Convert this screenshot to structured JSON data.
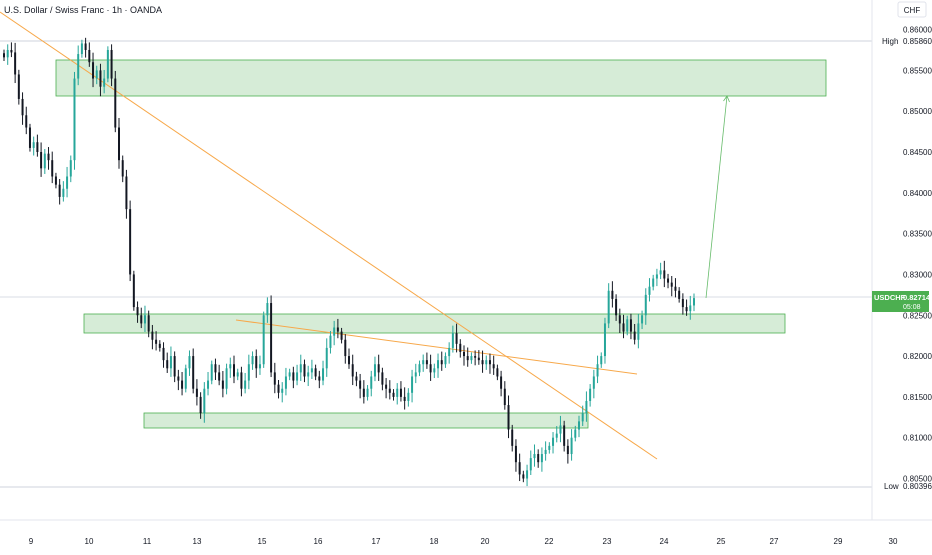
{
  "header": {
    "title": "U.S. Dollar / Swiss Franc · 1h · OANDA"
  },
  "price_axis": {
    "currency": "CHF",
    "labels": [
      "0.86000",
      "0.85500",
      "0.85000",
      "0.84500",
      "0.84000",
      "0.83500",
      "0.83000",
      "0.82500",
      "0.82000",
      "0.81500",
      "0.81000",
      "0.80500"
    ],
    "high_label": "High",
    "high_value": "0.85860",
    "low_label": "Low",
    "low_value": "0.80396",
    "current_symbol": "USDCHF",
    "current_price": "0.82714",
    "countdown": "05:08"
  },
  "time_axis": {
    "labels": [
      "9",
      "10",
      "11",
      "13",
      "15",
      "16",
      "17",
      "18",
      "20",
      "22",
      "23",
      "24",
      "25",
      "27",
      "29",
      "30"
    ]
  },
  "colors": {
    "up": "#26a69a",
    "down": "#131722",
    "zone_fill": "#c8e6c9",
    "zone_stroke": "#4caf50",
    "trendline": "#f7a84a",
    "projection": "#66bb6a",
    "current_badge": "#4caf50"
  },
  "chart_data": {
    "type": "candlestick",
    "symbol": "USDCHF",
    "interval": "1h",
    "source": "OANDA",
    "ylim": [
      0.802,
      0.8625
    ],
    "close_series": [
      0.8566,
      0.8575,
      0.8572,
      0.8545,
      0.8515,
      0.8495,
      0.848,
      0.8455,
      0.8462,
      0.845,
      0.843,
      0.8448,
      0.844,
      0.842,
      0.841,
      0.8395,
      0.8405,
      0.842,
      0.844,
      0.854,
      0.857,
      0.8583,
      0.8575,
      0.856,
      0.854,
      0.855,
      0.853,
      0.854,
      0.8575,
      0.854,
      0.848,
      0.844,
      0.842,
      0.838,
      0.83,
      0.826,
      0.825,
      0.824,
      0.825,
      0.823,
      0.822,
      0.8215,
      0.821,
      0.8195,
      0.8185,
      0.82,
      0.8175,
      0.817,
      0.816,
      0.8185,
      0.82,
      0.816,
      0.815,
      0.813,
      0.816,
      0.817,
      0.819,
      0.818,
      0.817,
      0.816,
      0.8185,
      0.819,
      0.8175,
      0.818,
      0.816,
      0.817,
      0.819,
      0.82,
      0.8185,
      0.819,
      0.825,
      0.8265,
      0.818,
      0.8165,
      0.8155,
      0.816,
      0.8175,
      0.818,
      0.817,
      0.818,
      0.819,
      0.8175,
      0.818,
      0.8185,
      0.8175,
      0.817,
      0.8185,
      0.821,
      0.8225,
      0.8235,
      0.823,
      0.822,
      0.82,
      0.819,
      0.8175,
      0.817,
      0.816,
      0.815,
      0.816,
      0.8175,
      0.819,
      0.818,
      0.8165,
      0.816,
      0.8155,
      0.815,
      0.816,
      0.815,
      0.8145,
      0.8155,
      0.8175,
      0.818,
      0.819,
      0.8195,
      0.819,
      0.818,
      0.8185,
      0.8195,
      0.819,
      0.82,
      0.821,
      0.8228,
      0.8215,
      0.8205,
      0.82,
      0.8195,
      0.82,
      0.8198,
      0.8195,
      0.819,
      0.8195,
      0.819,
      0.8185,
      0.8175,
      0.816,
      0.814,
      0.811,
      0.809,
      0.807,
      0.8055,
      0.805,
      0.806,
      0.8075,
      0.808,
      0.807,
      0.808,
      0.8085,
      0.809,
      0.81,
      0.8105,
      0.8115,
      0.809,
      0.808,
      0.81,
      0.811,
      0.812,
      0.813,
      0.8145,
      0.816,
      0.8175,
      0.819,
      0.82,
      0.824,
      0.828,
      0.827,
      0.825,
      0.824,
      0.823,
      0.8245,
      0.823,
      0.822,
      0.824,
      0.825,
      0.8275,
      0.8285,
      0.8295,
      0.83,
      0.8305,
      0.8295,
      0.829,
      0.8285,
      0.828,
      0.827,
      0.826,
      0.8255,
      0.8262,
      0.8271
    ],
    "zones": [
      {
        "name": "upper resistance",
        "price_top": 0.8565,
        "price_bottom": 0.852
      },
      {
        "name": "middle support",
        "price_top": 0.8253,
        "price_bottom": 0.823
      },
      {
        "name": "lower support",
        "price_top": 0.8129,
        "price_bottom": 0.811
      }
    ],
    "trendlines": [
      {
        "name": "descending trendline",
        "from": [
          0,
          0.8625
        ],
        "to": [
          1,
          0.8075
        ]
      },
      {
        "name": "flat trendline",
        "from": [
          0,
          0.8254
        ],
        "to": [
          1,
          0.8178
        ]
      }
    ],
    "projection_target": 0.852,
    "last_price": 0.82714,
    "high": 0.8586,
    "low": 0.80396
  }
}
